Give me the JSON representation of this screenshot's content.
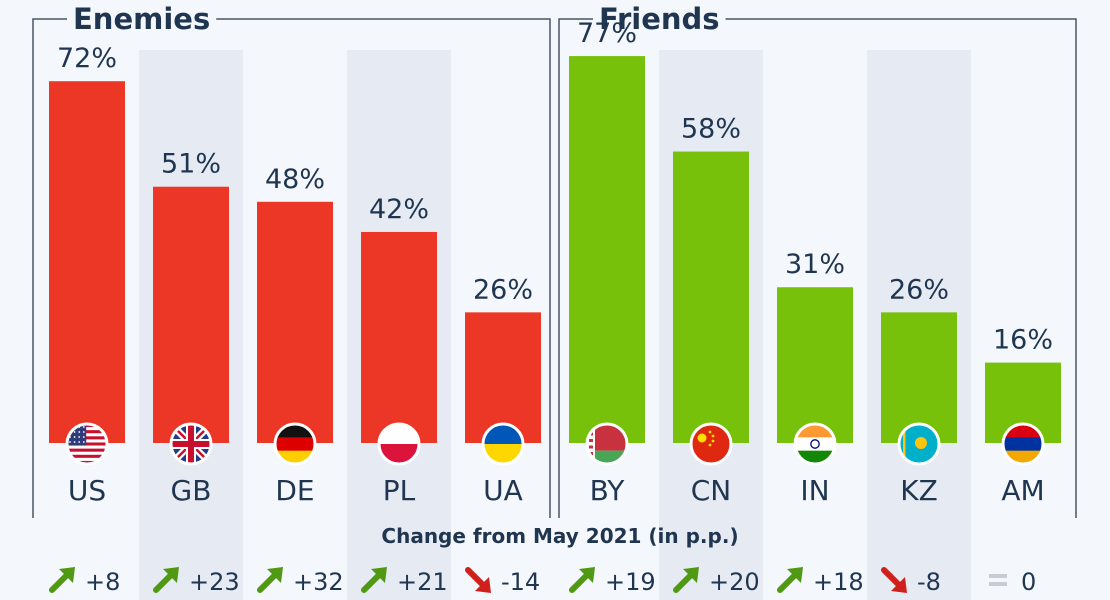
{
  "chart_data": {
    "type": "bar",
    "ylim": [
      0,
      80
    ],
    "value_suffix": "%",
    "change_title": "Change from May 2021 (in p.p.)",
    "colors": {
      "enemies": "#ec3726",
      "friends": "#78c10a",
      "up": "#4f9a12",
      "down": "#d0201b",
      "flat": "#c7ccd2",
      "frame": "#4a5666",
      "stripe": "#e6ebf3"
    },
    "groups": [
      {
        "title": "Enemies",
        "color_key": "enemies",
        "items": [
          {
            "code": "US",
            "value": 72,
            "change": "+8",
            "trend": "up",
            "flag_icon": "us-flag-icon"
          },
          {
            "code": "GB",
            "value": 51,
            "change": "+23",
            "trend": "up",
            "flag_icon": "gb-flag-icon"
          },
          {
            "code": "DE",
            "value": 48,
            "change": "+32",
            "trend": "up",
            "flag_icon": "de-flag-icon"
          },
          {
            "code": "PL",
            "value": 42,
            "change": "+21",
            "trend": "up",
            "flag_icon": "pl-flag-icon"
          },
          {
            "code": "UA",
            "value": 26,
            "change": "-14",
            "trend": "down",
            "flag_icon": "ua-flag-icon"
          }
        ]
      },
      {
        "title": "Friends",
        "color_key": "friends",
        "items": [
          {
            "code": "BY",
            "value": 77,
            "change": "+19",
            "trend": "up",
            "flag_icon": "by-flag-icon"
          },
          {
            "code": "CN",
            "value": 58,
            "change": "+20",
            "trend": "up",
            "flag_icon": "cn-flag-icon"
          },
          {
            "code": "IN",
            "value": 31,
            "change": "+18",
            "trend": "up",
            "flag_icon": "in-flag-icon"
          },
          {
            "code": "KZ",
            "value": 26,
            "change": "-8",
            "trend": "down",
            "flag_icon": "kz-flag-icon"
          },
          {
            "code": "AM",
            "value": 16,
            "change": "0",
            "trend": "flat",
            "flag_icon": "am-flag-icon"
          }
        ]
      }
    ]
  }
}
